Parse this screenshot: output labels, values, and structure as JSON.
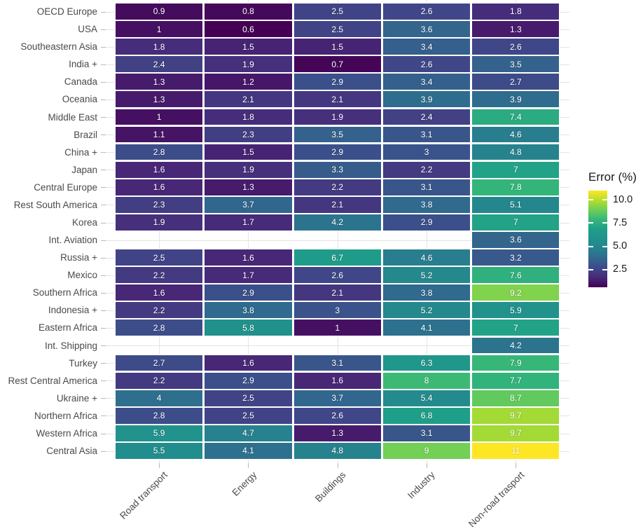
{
  "chart_data": {
    "type": "heatmap",
    "legend_title": "Error (%)",
    "legend_ticks": [
      2.5,
      5.0,
      7.5,
      10.0
    ],
    "scale": {
      "min": 0.6,
      "max": 11,
      "palette": "viridis"
    },
    "columns": [
      "Road transport",
      "Energy",
      "Buildings",
      "Industry",
      "Non-road trasport"
    ],
    "rows": [
      "OECD Europe",
      "USA",
      "Southeastern Asia",
      "India +",
      "Canada",
      "Oceania",
      "Middle East",
      "Brazil",
      "China +",
      "Japan",
      "Central Europe",
      "Rest South America",
      "Korea",
      "Int. Aviation",
      "Russia +",
      "Mexico",
      "Southern Africa",
      "Indonesia +",
      "Eastern Africa",
      "Int. Shipping",
      "Turkey",
      "Rest Central America",
      "Ukraine +",
      "Northern Africa",
      "Western Africa",
      "Central Asia"
    ],
    "values": [
      [
        0.9,
        0.8,
        2.5,
        2.6,
        1.8
      ],
      [
        1,
        0.6,
        2.5,
        3.6,
        1.3
      ],
      [
        1.8,
        1.5,
        1.5,
        3.4,
        2.6
      ],
      [
        2.4,
        1.9,
        0.7,
        2.6,
        3.5
      ],
      [
        1.3,
        1.2,
        2.9,
        3.4,
        2.7
      ],
      [
        1.3,
        2.1,
        2.1,
        3.9,
        3.9
      ],
      [
        1,
        1.8,
        1.9,
        2.4,
        7.4
      ],
      [
        1.1,
        2.3,
        3.5,
        3.1,
        4.6
      ],
      [
        2.8,
        1.5,
        2.9,
        3,
        4.8
      ],
      [
        1.6,
        1.9,
        3.3,
        2.2,
        7
      ],
      [
        1.6,
        1.3,
        2.2,
        3.1,
        7.8
      ],
      [
        2.3,
        3.7,
        2.1,
        3.8,
        5.1
      ],
      [
        1.9,
        1.7,
        4.2,
        2.9,
        7
      ],
      [
        null,
        null,
        null,
        null,
        3.6
      ],
      [
        2.5,
        1.6,
        6.7,
        4.6,
        3.2
      ],
      [
        2.2,
        1.7,
        2.6,
        5.2,
        7.6
      ],
      [
        1.6,
        2.9,
        2.1,
        3.8,
        9.2
      ],
      [
        2.2,
        3.8,
        3,
        5.2,
        5.9
      ],
      [
        2.8,
        5.8,
        1,
        4.1,
        7
      ],
      [
        null,
        null,
        null,
        null,
        4.2
      ],
      [
        2.7,
        1.6,
        3.1,
        6.3,
        7.9
      ],
      [
        2.2,
        2.9,
        1.6,
        8,
        7.7
      ],
      [
        4,
        2.5,
        3.7,
        5.4,
        8.7
      ],
      [
        2.8,
        2.5,
        2.6,
        6.8,
        9.7
      ],
      [
        5.9,
        4.7,
        1.3,
        3.1,
        9.7
      ],
      [
        5.5,
        4.1,
        4.8,
        9,
        11
      ]
    ],
    "viridis_stops": [
      "#440154",
      "#482878",
      "#3e4a89",
      "#31688e",
      "#26828e",
      "#21918c",
      "#1f9e89",
      "#35b779",
      "#6ece58",
      "#b5de2b",
      "#fde725"
    ]
  },
  "colors": {
    "grid": "#e4e4e4",
    "axis_text": "#4a4a4a",
    "tick": "#b8b8b8",
    "legend_text": "#1a1a1a",
    "cell_text": "#ffffff"
  }
}
